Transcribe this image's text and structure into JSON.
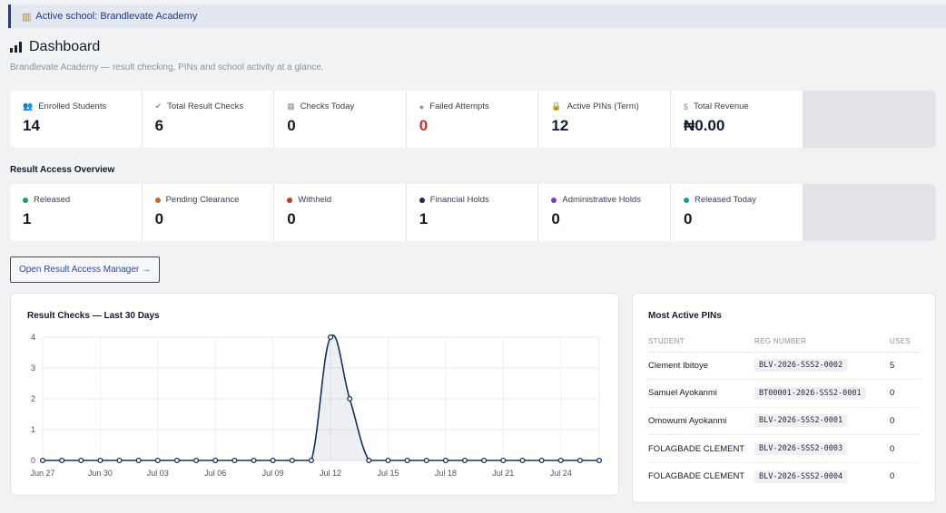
{
  "banner": {
    "icon": "school-icon",
    "text": "Active school: Brandlevate Academy"
  },
  "header": {
    "title": "Dashboard",
    "subtitle": "Brandlevate Academy — result checking, PINs and school activity at a glance."
  },
  "stats": [
    {
      "icon": "users-icon",
      "label": "Enrolled Students",
      "value": "14"
    },
    {
      "icon": "check-circle-icon",
      "label": "Total Result Checks",
      "value": "6"
    },
    {
      "icon": "calendar-icon",
      "label": "Checks Today",
      "value": "0"
    },
    {
      "icon": "alert-icon",
      "label": "Failed Attempts",
      "value": "0"
    },
    {
      "icon": "lock-icon",
      "label": "Active PINs (Term)",
      "value": "12"
    },
    {
      "icon": "dollar-icon",
      "label": "Total Revenue",
      "value": "₦0.00"
    }
  ],
  "access_overview": {
    "title": "Result Access Overview",
    "items": [
      {
        "label": "Released",
        "value": "1",
        "color": "#1a9a6c"
      },
      {
        "label": "Pending Clearance",
        "value": "0",
        "color": "#c06a2b"
      },
      {
        "label": "Withheld",
        "value": "0",
        "color": "#c8322d"
      },
      {
        "label": "Financial Holds",
        "value": "1",
        "color": "#1a2a4a"
      },
      {
        "label": "Administrative Holds",
        "value": "0",
        "color": "#7b3fc4"
      },
      {
        "label": "Released Today",
        "value": "0",
        "color": "#1a9a8a"
      }
    ]
  },
  "open_button": {
    "label": "Open Result Access Manager →"
  },
  "chart_data": {
    "type": "line",
    "title": "Result Checks — Last 30 Days",
    "x": [
      "Jun 27",
      "Jun 28",
      "Jun 29",
      "Jun 30",
      "Jul 01",
      "Jul 02",
      "Jul 03",
      "Jul 04",
      "Jul 05",
      "Jul 06",
      "Jul 07",
      "Jul 08",
      "Jul 09",
      "Jul 10",
      "Jul 11",
      "Jul 12",
      "Jul 13",
      "Jul 14",
      "Jul 15",
      "Jul 16",
      "Jul 17",
      "Jul 18",
      "Jul 19",
      "Jul 20",
      "Jul 21",
      "Jul 22",
      "Jul 23",
      "Jul 24",
      "Jul 25",
      "Jul 26"
    ],
    "x_tick_labels": [
      "Jun 27",
      "Jun 30",
      "Jul 03",
      "Jul 06",
      "Jul 09",
      "Jul 12",
      "Jul 15",
      "Jul 18",
      "Jul 21",
      "Jul 24"
    ],
    "series": [
      {
        "values": [
          0,
          0,
          0,
          0,
          0,
          0,
          0,
          0,
          0,
          0,
          0,
          0,
          0,
          0,
          0,
          4,
          2,
          0,
          0,
          0,
          0,
          0,
          0,
          0,
          0,
          0,
          0,
          0,
          0,
          0
        ]
      }
    ],
    "y_ticks": [
      "0",
      "1",
      "2",
      "3",
      "4"
    ],
    "ylim": [
      0,
      4
    ],
    "grid": true,
    "line_color": "#17305a"
  },
  "pins": {
    "title": "Most Active PINs",
    "columns": [
      "STUDENT",
      "REG NUMBER",
      "USES"
    ],
    "rows": [
      {
        "student": "Clement Ibitoye",
        "reg": "BLV-2026-SSS2-0002",
        "uses": "5"
      },
      {
        "student": "Samuel Ayokanmi",
        "reg": "BT00001-2026-SSS2-0001",
        "uses": "0"
      },
      {
        "student": "Omowumi Ayokanmi",
        "reg": "BLV-2026-SSS2-0001",
        "uses": "0"
      },
      {
        "student": "FOLAGBADE CLEMENT",
        "reg": "BLV-2026-SSS2-0003",
        "uses": "0"
      },
      {
        "student": "FOLAGBADE CLEMENT",
        "reg": "BLV-2026-SSS2-0004",
        "uses": "0"
      }
    ]
  }
}
